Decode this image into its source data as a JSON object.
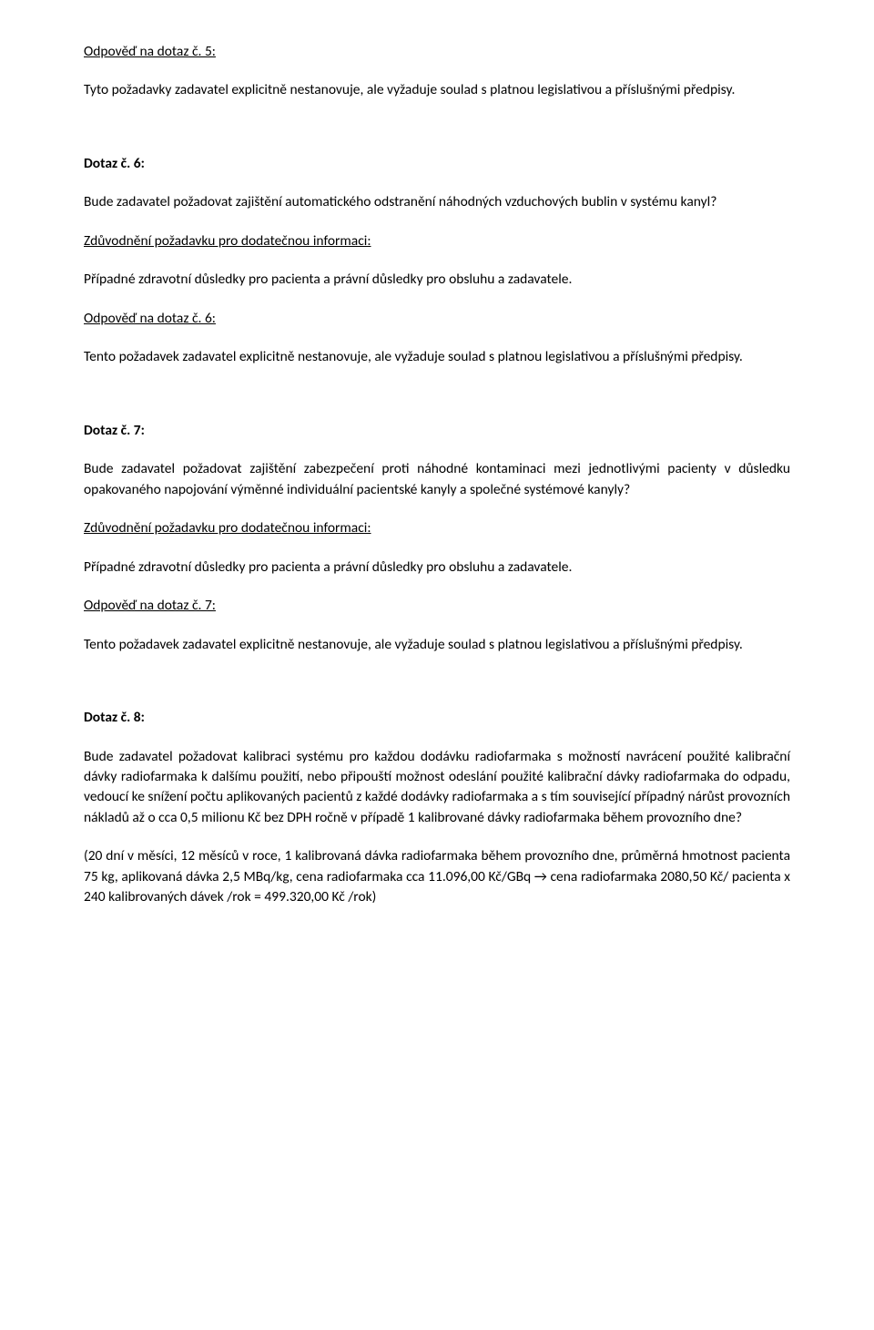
{
  "q5": {
    "answer_heading": "Odpověď na dotaz č. 5:",
    "answer_text": "Tyto požadavky zadavatel explicitně nestanovuje, ale vyžaduje soulad s platnou legislativou a příslušnými předpisy."
  },
  "q6": {
    "heading": "Dotaz č. 6:",
    "question_text": "Bude zadavatel požadovat zajištění automatického odstranění náhodných vzduchových bublin v systému kanyl?",
    "justify_heading": "Zdůvodnění požadavku pro dodatečnou informaci:",
    "justify_text": "Případné zdravotní důsledky pro pacienta a právní důsledky pro obsluhu a zadavatele.",
    "answer_heading": "Odpověď na dotaz č. 6:",
    "answer_text": "Tento požadavek zadavatel explicitně nestanovuje, ale vyžaduje soulad s platnou legislativou a příslušnými předpisy."
  },
  "q7": {
    "heading": "Dotaz č. 7:",
    "question_text": "Bude zadavatel požadovat zajištění zabezpečení proti náhodné kontaminaci mezi jednotlivými pacienty v důsledku opakovaného napojování výměnné individuální pacientské kanyly a společné systémové kanyly?",
    "justify_heading": "Zdůvodnění požadavku pro dodatečnou informaci:",
    "justify_text": "Případné zdravotní důsledky pro pacienta a právní důsledky pro obsluhu a zadavatele.",
    "answer_heading": "Odpověď na dotaz č. 7:",
    "answer_text": "Tento požadavek zadavatel explicitně nestanovuje, ale vyžaduje soulad s platnou legislativou a příslušnými předpisy."
  },
  "q8": {
    "heading": "Dotaz č. 8:",
    "question_text": "Bude zadavatel požadovat kalibraci systému pro každou dodávku radiofarmaka s možností navrácení použité kalibrační dávky radiofarmaka k dalšímu použití, nebo připouští možnost odeslání použité kalibrační dávky radiofarmaka do odpadu, vedoucí ke snížení počtu aplikovaných pacientů z každé dodávky radiofarmaka a s tím související případný nárůst provozních nákladů až o cca 0,5 milionu Kč bez DPH ročně v případě 1 kalibrované dávky radiofarmaka během provozního dne?",
    "calc_text": "(20 dní v měsíci, 12 měsíců v roce, 1 kalibrovaná dávka radiofarmaka během provozního dne, průměrná hmotnost pacienta 75 kg, aplikovaná dávka 2,5 MBq/kg, cena radiofarmaka cca 11.096,00 Kč/GBq → cena radiofarmaka 2080,50 Kč/ pacienta x 240 kalibrovaných dávek /rok = 499.320,00 Kč /rok)"
  }
}
